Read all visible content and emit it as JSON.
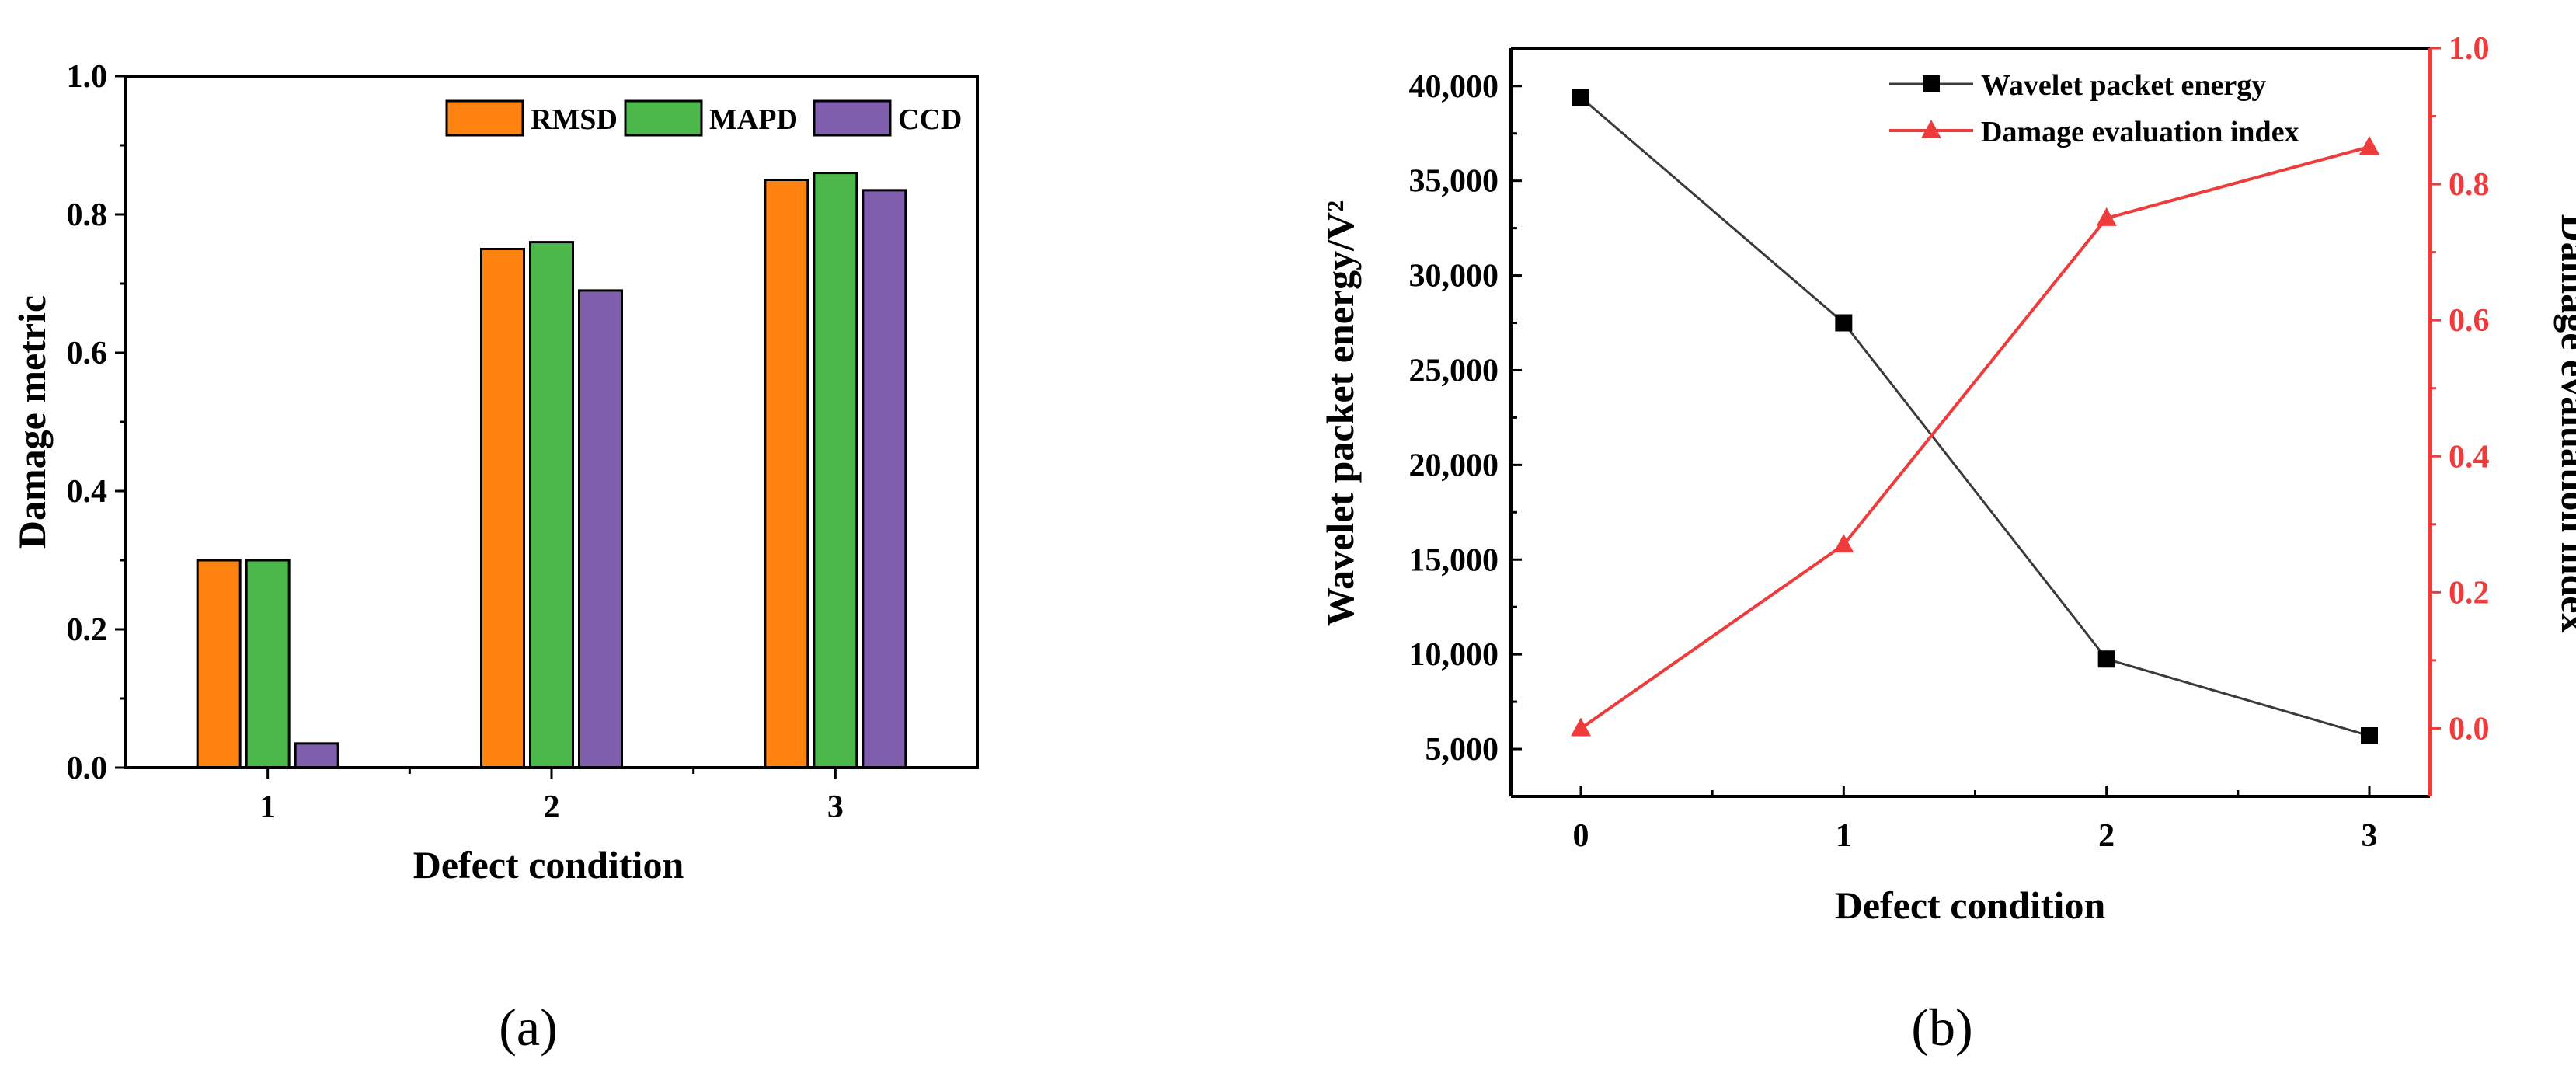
{
  "colors": {
    "rmsd": "#ff8310",
    "mapd": "#4cb84b",
    "ccd": "#7f5fad",
    "energy": "#3a3a3a",
    "index": "#ee3b3b",
    "axis": "#000000"
  },
  "chart_data": [
    {
      "type": "bar",
      "caption": "(a)",
      "categories": [
        "1",
        "2",
        "3"
      ],
      "series": [
        {
          "name": "RMSD",
          "values": [
            0.3,
            0.75,
            0.85
          ]
        },
        {
          "name": "MAPD",
          "values": [
            0.3,
            0.76,
            0.86
          ]
        },
        {
          "name": "CCD",
          "values": [
            0.035,
            0.69,
            0.835
          ]
        }
      ],
      "xlabel": "Defect condition",
      "ylabel": "Damage metric",
      "ylim": [
        0,
        1.0
      ],
      "yticks": [
        "0.0",
        "0.2",
        "0.4",
        "0.6",
        "0.8",
        "1.0"
      ],
      "legend": "top-right",
      "grid": false
    },
    {
      "type": "line",
      "caption": "(b)",
      "x": [
        0,
        1,
        2,
        3
      ],
      "xticks": [
        "0",
        "1",
        "2",
        "3"
      ],
      "xlabel": "Defect condition",
      "series": [
        {
          "name": "Wavelet packet energy",
          "axis": "left",
          "marker": "square",
          "values": [
            39400,
            27500,
            9750,
            5700
          ]
        },
        {
          "name": "Damage evaluation index",
          "axis": "right",
          "marker": "triangle",
          "values": [
            0.0,
            0.27,
            0.75,
            0.855
          ]
        }
      ],
      "ylabel_left": "Wavelet packet energy/V²",
      "ylabel_right": "Damage evaluation index",
      "ylim_left": [
        2500,
        42000
      ],
      "yticks_left": [
        "5,000",
        "10,000",
        "15,000",
        "20,000",
        "25,000",
        "30,000",
        "35,000",
        "40,000"
      ],
      "ylim_right": [
        -0.1,
        1.0
      ],
      "yticks_right": [
        "0.0",
        "0.2",
        "0.4",
        "0.6",
        "0.8",
        "1.0"
      ],
      "legend": "top-right",
      "grid": false
    }
  ]
}
